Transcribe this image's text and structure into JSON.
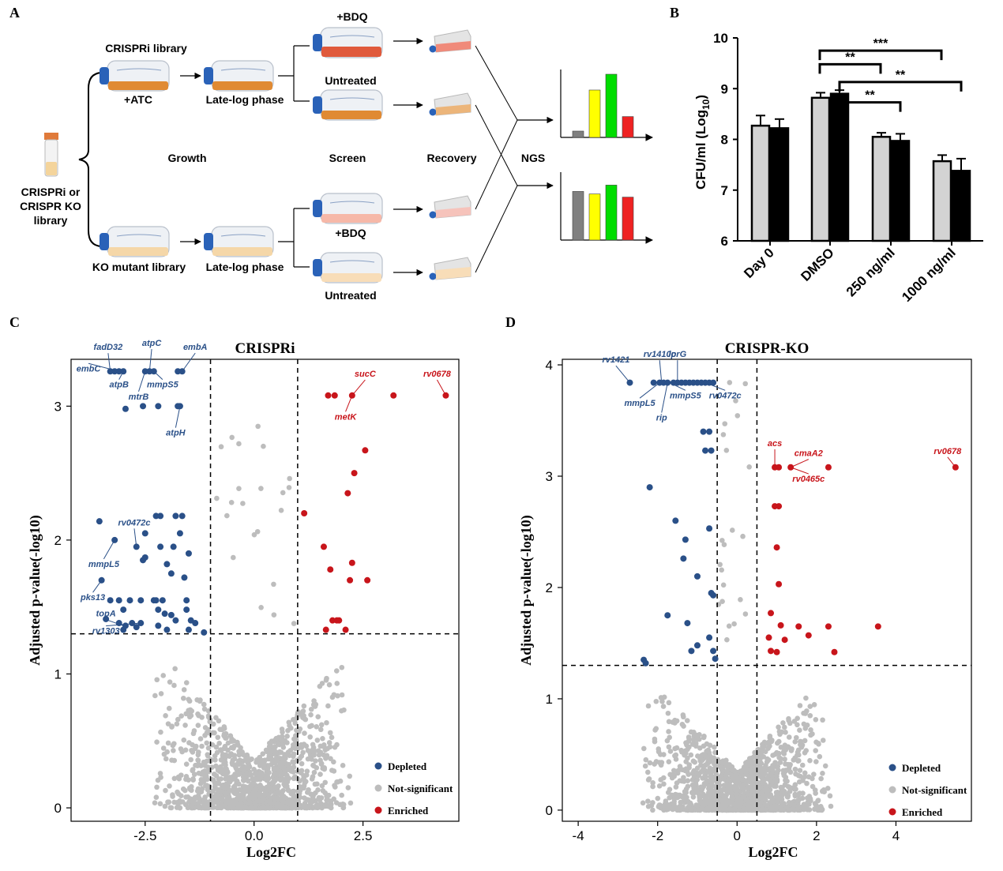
{
  "panels": {
    "A": "A",
    "B": "B",
    "C": "C",
    "D": "D"
  },
  "colors": {
    "depleted": "#2a5088",
    "enriched": "#c8151b",
    "ns": "#bdbdbd",
    "bar_grey": "#d3d3d3",
    "bar_black": "#000000",
    "flask_orange": "#e08a33",
    "flask_red": "#e05a3c",
    "flask_pale": "#f5d7a8",
    "cap_blue": "#2a62b8"
  },
  "schematic": {
    "tube_label": [
      "CRISPRi or",
      "CRISPR KO",
      "library"
    ],
    "top_library": "CRISPRi library",
    "atc": "+ATC",
    "late_log_top": "Late-log phase",
    "ko_library": "KO mutant library",
    "late_log_bottom": "Late-log phase",
    "bdq_top": "+BDQ",
    "untreated_top": "Untreated",
    "bdq_bottom": "+BDQ",
    "untreated_bottom": "Untreated",
    "growth": "Growth",
    "screen": "Screen",
    "recovery": "Recovery",
    "ngs": "NGS",
    "icons": [
      "flask-icon",
      "tube-icon",
      "bar-histogram-icon"
    ],
    "histogram_top_levels": [
      0.1,
      0.75,
      1.0,
      0.33
    ],
    "histogram_bottom_levels": [
      0.77,
      0.73,
      0.87,
      0.68
    ],
    "histogram_colors": [
      "#808080",
      "#ffff00",
      "#00dd00",
      "#ee2222"
    ]
  },
  "chart_data": [
    {
      "id": "B",
      "type": "bar",
      "ylabel": "CFU/ml (Log",
      "ylabel_sub": "10",
      "ylabel_close": ")",
      "ylim": [
        6,
        10
      ],
      "yticks": [
        "6",
        "7",
        "8",
        "9",
        "10"
      ],
      "categories": [
        "Day 0",
        "DMSO",
        "250 ng/ml",
        "1000 ng/ml"
      ],
      "series": [
        {
          "color": "#d3d3d3",
          "values": [
            8.27,
            8.82,
            8.05,
            7.57
          ],
          "errors": [
            0.2,
            0.1,
            0.08,
            0.12
          ]
        },
        {
          "color": "#000000",
          "values": [
            8.22,
            8.9,
            7.97,
            7.38
          ],
          "errors": [
            0.18,
            0.07,
            0.14,
            0.24
          ]
        }
      ],
      "significance": [
        {
          "label": "***",
          "from": 1,
          "to": 3,
          "height": 9.75
        },
        {
          "label": "**",
          "from": 1,
          "to": 2,
          "height": 9.48
        },
        {
          "label": "**",
          "from": 1.3,
          "to": 3.3,
          "height": 9.13
        },
        {
          "label": "**",
          "from": 1.3,
          "to": 2.3,
          "height": 8.73
        }
      ]
    },
    {
      "id": "C",
      "type": "scatter",
      "title": "CRISPRi",
      "xlabel": "Log2FC",
      "ylabel": "Adjusted p-value(-log10)",
      "xlim": [
        -4.2,
        4.7
      ],
      "ylim": [
        -0.1,
        3.35
      ],
      "xticks": [
        -2.5,
        0.0,
        2.5
      ],
      "xtick_labels": [
        "-2.5",
        "0.0",
        "2.5"
      ],
      "yticks": [
        0,
        1,
        2,
        3
      ],
      "thresholds": {
        "x": [
          -1,
          1
        ],
        "y": 1.3
      },
      "legend": [
        "Depleted",
        "Not-significant",
        "Enriched"
      ],
      "depleted": [
        [
          -3.3,
          3.26
        ],
        [
          -3.2,
          3.26
        ],
        [
          -3.1,
          3.26
        ],
        [
          -3.0,
          3.26
        ],
        [
          -2.5,
          3.26
        ],
        [
          -2.4,
          3.26
        ],
        [
          -2.3,
          3.26
        ],
        [
          -1.75,
          3.26
        ],
        [
          -1.65,
          3.26
        ],
        [
          -2.95,
          2.98
        ],
        [
          -2.55,
          3.0
        ],
        [
          -2.2,
          3.0
        ],
        [
          -1.75,
          3.0
        ],
        [
          -1.7,
          3.0
        ],
        [
          -3.55,
          2.14
        ],
        [
          -2.25,
          2.18
        ],
        [
          -2.15,
          2.18
        ],
        [
          -1.8,
          2.18
        ],
        [
          -1.65,
          2.18
        ],
        [
          -2.5,
          2.05
        ],
        [
          -1.7,
          2.05
        ],
        [
          -3.2,
          2.0
        ],
        [
          -2.7,
          1.95
        ],
        [
          -2.15,
          1.95
        ],
        [
          -1.85,
          1.95
        ],
        [
          -1.5,
          1.9
        ],
        [
          -2.5,
          1.87
        ],
        [
          -2.55,
          1.85
        ],
        [
          -2.0,
          1.82
        ],
        [
          -1.9,
          1.75
        ],
        [
          -1.6,
          1.72
        ],
        [
          -3.5,
          1.7
        ],
        [
          -1.55,
          1.55
        ],
        [
          -3.3,
          1.55
        ],
        [
          -3.1,
          1.55
        ],
        [
          -2.85,
          1.55
        ],
        [
          -2.6,
          1.55
        ],
        [
          -2.3,
          1.55
        ],
        [
          -2.25,
          1.55
        ],
        [
          -2.1,
          1.55
        ],
        [
          -3.0,
          1.48
        ],
        [
          -2.2,
          1.48
        ],
        [
          -2.05,
          1.45
        ],
        [
          -1.9,
          1.44
        ],
        [
          -1.55,
          1.48
        ],
        [
          -3.4,
          1.41
        ],
        [
          -3.1,
          1.38
        ],
        [
          -2.8,
          1.38
        ],
        [
          -2.6,
          1.38
        ],
        [
          -1.8,
          1.4
        ],
        [
          -1.45,
          1.4
        ],
        [
          -1.35,
          1.38
        ],
        [
          -2.95,
          1.36
        ],
        [
          -2.7,
          1.35
        ],
        [
          -2.2,
          1.36
        ],
        [
          -2.0,
          1.33
        ],
        [
          -1.5,
          1.33
        ],
        [
          -1.15,
          1.31
        ],
        [
          -3.0,
          1.33
        ]
      ],
      "enriched": [
        [
          1.7,
          3.08
        ],
        [
          1.85,
          3.08
        ],
        [
          2.25,
          3.08
        ],
        [
          3.2,
          3.08
        ],
        [
          4.4,
          3.08
        ],
        [
          2.55,
          2.67
        ],
        [
          2.3,
          2.5
        ],
        [
          2.15,
          2.35
        ],
        [
          1.15,
          2.2
        ],
        [
          1.6,
          1.95
        ],
        [
          1.75,
          1.78
        ],
        [
          2.25,
          1.83
        ],
        [
          2.6,
          1.7
        ],
        [
          2.2,
          1.7
        ],
        [
          1.8,
          1.4
        ],
        [
          1.95,
          1.4
        ],
        [
          1.9,
          1.4
        ],
        [
          1.65,
          1.33
        ],
        [
          2.1,
          1.33
        ]
      ],
      "labels": [
        {
          "text": "fadD32",
          "x": -3.3,
          "y": 3.26,
          "lx": -3.35,
          "ly": 3.42
        },
        {
          "text": "atpC",
          "x": -2.4,
          "y": 3.26,
          "lx": -2.35,
          "ly": 3.45
        },
        {
          "text": "embA",
          "x": -1.65,
          "y": 3.26,
          "lx": -1.35,
          "ly": 3.42
        },
        {
          "text": "embC",
          "x": -3.1,
          "y": 3.26,
          "lx": -3.8,
          "ly": 3.26
        },
        {
          "text": "atpB",
          "x": -3.0,
          "y": 3.26,
          "lx": -3.1,
          "ly": 3.14
        },
        {
          "text": "mtrB",
          "x": -2.5,
          "y": 3.26,
          "lx": -2.65,
          "ly": 3.05
        },
        {
          "text": "mmpS5",
          "x": -2.3,
          "y": 3.26,
          "lx": -2.1,
          "ly": 3.14
        },
        {
          "text": "atpH",
          "x": -1.7,
          "y": 3.0,
          "lx": -1.8,
          "ly": 2.78
        },
        {
          "text": "sucC",
          "x": 2.25,
          "y": 3.08,
          "lx": 2.55,
          "ly": 3.22
        },
        {
          "text": "rv0678",
          "x": 4.4,
          "y": 3.08,
          "lx": 4.2,
          "ly": 3.22
        },
        {
          "text": "metK",
          "x": 2.25,
          "y": 3.08,
          "lx": 2.1,
          "ly": 2.9
        },
        {
          "text": "rv0472c",
          "x": -2.7,
          "y": 1.95,
          "lx": -2.75,
          "ly": 2.11
        },
        {
          "text": "mmpL5",
          "x": -3.2,
          "y": 2.0,
          "lx": -3.45,
          "ly": 1.8
        },
        {
          "text": "pks13",
          "x": -3.5,
          "y": 1.7,
          "lx": -3.7,
          "ly": 1.55
        },
        {
          "text": "topA",
          "x": -3.0,
          "y": 1.36,
          "lx": -3.4,
          "ly": 1.43
        },
        {
          "text": "rv1303",
          "x": -2.6,
          "y": 1.38,
          "lx": -3.4,
          "ly": 1.3
        }
      ]
    },
    {
      "id": "D",
      "type": "scatter",
      "title": "CRISPR-KO",
      "xlabel": "Log2FC",
      "ylabel": "Adjusted p-value(-log10)",
      "xlim": [
        -4.4,
        5.9
      ],
      "ylim": [
        -0.1,
        4.05
      ],
      "xticks": [
        -4,
        -2,
        0,
        2,
        4
      ],
      "xtick_labels": [
        "-4",
        "-2",
        "0",
        "2",
        "4"
      ],
      "yticks": [
        0,
        1,
        2,
        3,
        4
      ],
      "thresholds": {
        "x": [
          -0.5,
          0.5
        ],
        "y": 1.3
      },
      "legend": [
        "Depleted",
        "Not-significant",
        "Enriched"
      ],
      "depleted": [
        [
          -2.7,
          3.84
        ],
        [
          -2.1,
          3.84
        ],
        [
          -1.95,
          3.84
        ],
        [
          -1.85,
          3.84
        ],
        [
          -1.75,
          3.84
        ],
        [
          -1.6,
          3.84
        ],
        [
          -1.5,
          3.84
        ],
        [
          -1.4,
          3.84
        ],
        [
          -1.3,
          3.84
        ],
        [
          -1.2,
          3.84
        ],
        [
          -1.1,
          3.84
        ],
        [
          -1.0,
          3.84
        ],
        [
          -0.9,
          3.84
        ],
        [
          -0.8,
          3.84
        ],
        [
          -0.7,
          3.84
        ],
        [
          -0.6,
          3.84
        ],
        [
          -0.85,
          3.4
        ],
        [
          -0.7,
          3.4
        ],
        [
          -0.8,
          3.23
        ],
        [
          -0.65,
          3.23
        ],
        [
          -2.2,
          2.9
        ],
        [
          -1.55,
          2.6
        ],
        [
          -1.3,
          2.43
        ],
        [
          -0.7,
          2.53
        ],
        [
          -1.35,
          2.26
        ],
        [
          -1.0,
          2.1
        ],
        [
          -0.65,
          1.95
        ],
        [
          -0.6,
          1.93
        ],
        [
          -1.75,
          1.75
        ],
        [
          -1.25,
          1.68
        ],
        [
          -0.7,
          1.55
        ],
        [
          -1.0,
          1.48
        ],
        [
          -1.15,
          1.43
        ],
        [
          -0.6,
          1.43
        ],
        [
          -2.35,
          1.35
        ],
        [
          -2.3,
          1.32
        ],
        [
          -0.55,
          1.36
        ]
      ],
      "enriched": [
        [
          0.95,
          3.08
        ],
        [
          1.05,
          3.08
        ],
        [
          1.35,
          3.08
        ],
        [
          2.3,
          3.08
        ],
        [
          5.5,
          3.08
        ],
        [
          0.95,
          2.73
        ],
        [
          1.05,
          2.73
        ],
        [
          1.0,
          2.36
        ],
        [
          1.05,
          2.03
        ],
        [
          0.85,
          1.77
        ],
        [
          1.1,
          1.66
        ],
        [
          1.55,
          1.65
        ],
        [
          2.3,
          1.65
        ],
        [
          3.55,
          1.65
        ],
        [
          0.8,
          1.55
        ],
        [
          1.8,
          1.57
        ],
        [
          1.2,
          1.53
        ],
        [
          0.85,
          1.43
        ],
        [
          1.0,
          1.42
        ],
        [
          2.45,
          1.42
        ]
      ],
      "labels": [
        {
          "text": "rv1421",
          "x": -2.7,
          "y": 3.84,
          "lx": -3.05,
          "ly": 4.02
        },
        {
          "text": "rv1410c",
          "x": -1.9,
          "y": 3.84,
          "lx": -1.95,
          "ly": 4.07
        },
        {
          "text": "lprG",
          "x": -1.5,
          "y": 3.84,
          "lx": -1.5,
          "ly": 4.07
        },
        {
          "text": "mmpL5",
          "x": -1.95,
          "y": 3.84,
          "lx": -2.45,
          "ly": 3.63
        },
        {
          "text": "mmpS5",
          "x": -1.7,
          "y": 3.84,
          "lx": -1.3,
          "ly": 3.7
        },
        {
          "text": "rv0472c",
          "x": -0.8,
          "y": 3.84,
          "lx": -0.3,
          "ly": 3.7
        },
        {
          "text": "rip",
          "x": -1.75,
          "y": 3.84,
          "lx": -1.9,
          "ly": 3.5
        },
        {
          "text": "acs",
          "x": 0.95,
          "y": 3.08,
          "lx": 0.95,
          "ly": 3.27
        },
        {
          "text": "cmaA2",
          "x": 1.35,
          "y": 3.08,
          "lx": 1.8,
          "ly": 3.18
        },
        {
          "text": "rv0465c",
          "x": 1.35,
          "y": 3.08,
          "lx": 1.8,
          "ly": 2.95
        },
        {
          "text": "rv0678",
          "x": 5.5,
          "y": 3.08,
          "lx": 5.3,
          "ly": 3.2
        }
      ]
    }
  ]
}
